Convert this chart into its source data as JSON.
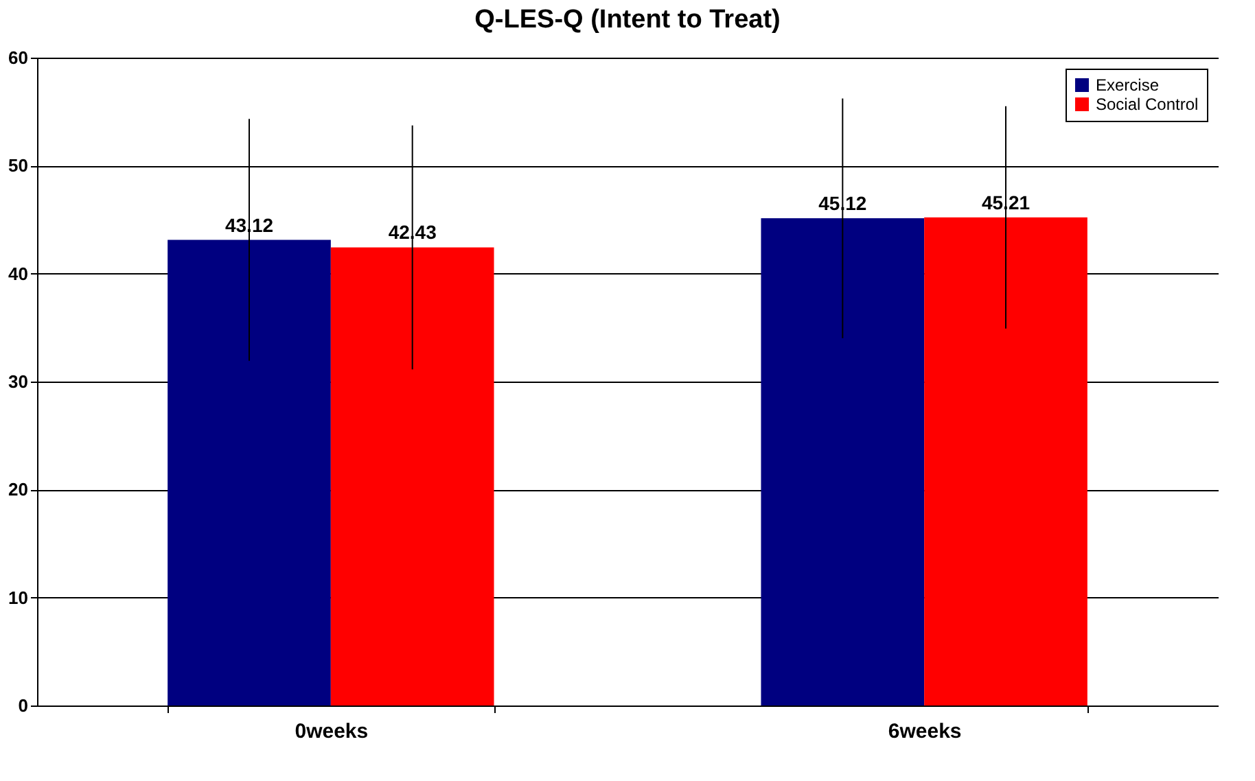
{
  "chart_data": {
    "type": "bar",
    "title": "Q-LES-Q (Intent to Treat)",
    "categories": [
      "0weeks",
      "6weeks"
    ],
    "series": [
      {
        "name": "Exercise",
        "color": "#000080",
        "values": [
          43.12,
          45.12
        ],
        "errors": [
          11.2,
          11.1
        ]
      },
      {
        "name": "Social Control",
        "color": "#ff0000",
        "values": [
          42.43,
          45.21
        ],
        "errors": [
          11.3,
          10.3
        ]
      }
    ],
    "ylim": [
      0,
      60
    ],
    "yticks": [
      0,
      10,
      20,
      30,
      40,
      50,
      60
    ],
    "grid": "y",
    "legend": "top right",
    "data_labels": true
  }
}
